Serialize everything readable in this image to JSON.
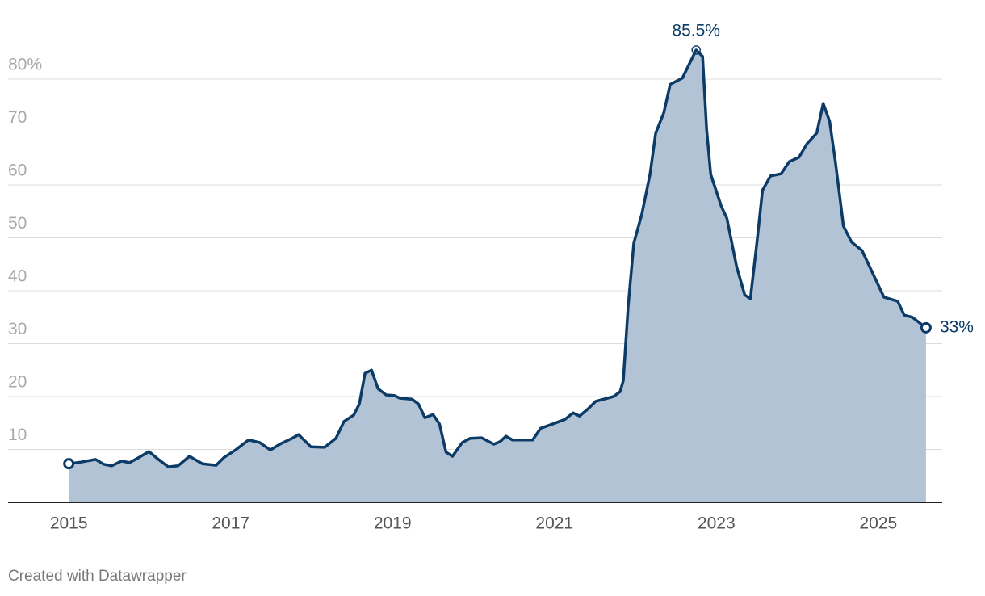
{
  "chart_data": {
    "type": "area",
    "line_color": "#0b3b66",
    "fill_color": "#b2c3d5",
    "grid": true,
    "source": "Created with Datawrapper",
    "xlim": [
      2014.25,
      2025.79
    ],
    "xticks": [
      2015,
      2017,
      2019,
      2021,
      2023,
      2025
    ],
    "ylim": [
      0,
      90
    ],
    "yticks": [
      10,
      20,
      30,
      40,
      50,
      60,
      70,
      {
        "value": 80,
        "label": "80%"
      }
    ],
    "x": [
      2015.0,
      2015.15,
      2015.33,
      2015.43,
      2015.53,
      2015.65,
      2015.75,
      2015.87,
      2015.99,
      2016.1,
      2016.23,
      2016.35,
      2016.49,
      2016.65,
      2016.82,
      2016.92,
      2017.06,
      2017.22,
      2017.36,
      2017.49,
      2017.62,
      2017.76,
      2017.84,
      2017.99,
      2018.16,
      2018.3,
      2018.4,
      2018.52,
      2018.59,
      2018.66,
      2018.74,
      2018.82,
      2018.92,
      2019.02,
      2019.09,
      2019.24,
      2019.32,
      2019.4,
      2019.5,
      2019.58,
      2019.66,
      2019.74,
      2019.86,
      2019.96,
      2020.1,
      2020.25,
      2020.33,
      2020.4,
      2020.48,
      2020.73,
      2020.83,
      2021.01,
      2021.13,
      2021.23,
      2021.31,
      2021.41,
      2021.51,
      2021.73,
      2021.81,
      2021.85,
      2021.91,
      2021.98,
      2022.08,
      2022.18,
      2022.25,
      2022.35,
      2022.43,
      2022.58,
      2022.66,
      2022.75,
      2022.83,
      2022.88,
      2022.93,
      2023.06,
      2023.13,
      2023.25,
      2023.35,
      2023.42,
      2023.5,
      2023.57,
      2023.67,
      2023.8,
      2023.9,
      2024.02,
      2024.12,
      2024.24,
      2024.32,
      2024.4,
      2024.47,
      2024.57,
      2024.67,
      2024.8,
      2024.94,
      2025.07,
      2025.24,
      2025.32,
      2025.42,
      2025.59
    ],
    "values": [
      7.3,
      7.6,
      8.1,
      7.2,
      6.9,
      7.8,
      7.5,
      8.5,
      9.6,
      8.2,
      6.7,
      6.9,
      8.7,
      7.3,
      7.0,
      8.5,
      9.9,
      11.8,
      11.3,
      9.9,
      11.1,
      12.1,
      12.8,
      10.5,
      10.4,
      12.1,
      15.3,
      16.5,
      18.6,
      24.4,
      25.0,
      21.5,
      20.3,
      20.2,
      19.7,
      19.5,
      18.6,
      16.0,
      16.6,
      14.8,
      9.5,
      8.7,
      11.3,
      12.1,
      12.2,
      11.0,
      11.5,
      12.5,
      11.8,
      11.8,
      14.0,
      15.0,
      15.7,
      16.9,
      16.3,
      17.6,
      19.1,
      20.0,
      20.9,
      23,
      37,
      49,
      54.5,
      62,
      69.8,
      73.6,
      79,
      80.2,
      82.7,
      85.5,
      84.3,
      70.5,
      62,
      56,
      53.7,
      44.6,
      39.2,
      38.5,
      49,
      59,
      61.7,
      62.1,
      64.4,
      65.2,
      67.8,
      69.8,
      75.4,
      72,
      64.4,
      52.2,
      49.2,
      47.6,
      43,
      38.8,
      38,
      35.4,
      35,
      33
    ],
    "annotations": [
      {
        "x": 2022.75,
        "y": 85.5,
        "label": "85.5%"
      },
      {
        "x": 2025.59,
        "y": 33,
        "label": "33%"
      }
    ]
  }
}
